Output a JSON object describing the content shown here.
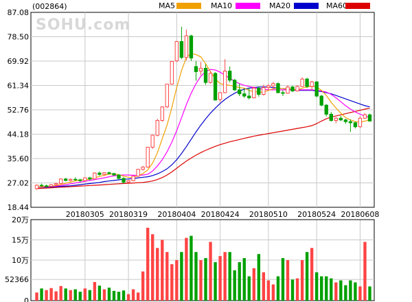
{
  "header": {
    "stock_code": "(002864)",
    "watermark": "SOHU.com",
    "legend": [
      {
        "name": "MA5",
        "color": "#f0a000"
      },
      {
        "name": "MA10",
        "color": "#ff00ff"
      },
      {
        "name": "MA20",
        "color": "#0000cc"
      },
      {
        "name": "MA60",
        "color": "#dd0000"
      }
    ]
  },
  "colors": {
    "up": "#ff4444",
    "down": "#00a000",
    "grid": "#c8c8c8",
    "border": "#000000"
  },
  "chart_data": [
    {
      "type": "candlestick",
      "title": "",
      "y_ticks": [
        "87.08",
        "78.50",
        "69.92",
        "61.34",
        "52.76",
        "44.18",
        "35.60",
        "27.02",
        "18.44"
      ],
      "ylim": [
        18.44,
        87.08
      ],
      "x_tick_labels": [
        "20180305",
        "20180319",
        "20180404",
        "20180424",
        "20180510",
        "20180524",
        "20180608"
      ],
      "x_tick_positions": [
        10,
        19,
        29,
        38,
        48,
        58,
        67
      ],
      "ohlc": [
        [
          25.0,
          26.5,
          24.6,
          26.2
        ],
        [
          26.2,
          26.8,
          25.8,
          26.0
        ],
        [
          26.0,
          26.4,
          25.5,
          25.8
        ],
        [
          25.8,
          26.6,
          25.6,
          26.4
        ],
        [
          26.4,
          27.0,
          26.0,
          26.8
        ],
        [
          26.8,
          28.6,
          26.6,
          28.4
        ],
        [
          28.4,
          28.8,
          27.6,
          27.9
        ],
        [
          27.9,
          28.6,
          27.5,
          28.3
        ],
        [
          28.3,
          29.0,
          27.8,
          28.1
        ],
        [
          28.1,
          28.5,
          27.4,
          27.8
        ],
        [
          27.8,
          29.0,
          27.6,
          28.8
        ],
        [
          28.8,
          29.2,
          28.0,
          28.4
        ],
        [
          28.4,
          30.8,
          28.2,
          30.5
        ],
        [
          30.5,
          31.0,
          29.6,
          30.0
        ],
        [
          30.0,
          30.8,
          29.6,
          30.6
        ],
        [
          30.6,
          31.0,
          30.0,
          30.3
        ],
        [
          30.3,
          30.6,
          29.6,
          29.8
        ],
        [
          29.8,
          30.2,
          28.4,
          28.6
        ],
        [
          28.6,
          29.0,
          26.8,
          27.3
        ],
        [
          27.3,
          28.0,
          27.0,
          27.8
        ],
        [
          27.8,
          29.6,
          27.6,
          29.4
        ],
        [
          29.4,
          32.0,
          29.2,
          31.8
        ],
        [
          31.8,
          33.0,
          31.4,
          32.6
        ],
        [
          32.6,
          39.6,
          32.4,
          39.6
        ],
        [
          39.6,
          44.0,
          39.0,
          43.8
        ],
        [
          43.8,
          49.6,
          43.4,
          49.0
        ],
        [
          49.0,
          54.0,
          48.6,
          53.8
        ],
        [
          53.8,
          61.8,
          53.4,
          61.8
        ],
        [
          61.8,
          70.0,
          61.6,
          69.8
        ],
        [
          70.0,
          77.0,
          69.6,
          76.8
        ],
        [
          76.8,
          82.0,
          70.6,
          71.2
        ],
        [
          71.2,
          81.0,
          70.2,
          78.8
        ],
        [
          78.8,
          79.2,
          70.0,
          71.0
        ],
        [
          68.0,
          70.0,
          63.0,
          66.2
        ],
        [
          66.4,
          69.6,
          65.0,
          67.4
        ],
        [
          67.4,
          68.8,
          61.6,
          62.4
        ],
        [
          62.4,
          66.4,
          62.0,
          65.6
        ],
        [
          65.6,
          66.0,
          56.0,
          56.2
        ],
        [
          56.4,
          59.0,
          55.6,
          58.8
        ],
        [
          58.8,
          70.6,
          58.6,
          66.4
        ],
        [
          66.4,
          68.0,
          62.4,
          63.2
        ],
        [
          63.2,
          63.6,
          59.4,
          59.8
        ],
        [
          59.8,
          62.0,
          57.6,
          58.4
        ],
        [
          58.4,
          60.4,
          57.0,
          57.6
        ],
        [
          57.6,
          60.6,
          56.4,
          57.0
        ],
        [
          57.0,
          61.0,
          56.8,
          60.4
        ],
        [
          60.4,
          60.8,
          57.4,
          58.2
        ],
        [
          58.2,
          61.6,
          57.8,
          60.6
        ],
        [
          60.6,
          61.8,
          59.6,
          61.2
        ],
        [
          61.2,
          62.6,
          60.2,
          62.0
        ],
        [
          62.0,
          62.4,
          58.6,
          58.8
        ],
        [
          58.8,
          59.6,
          57.6,
          58.6
        ],
        [
          58.6,
          61.4,
          58.4,
          60.8
        ],
        [
          60.8,
          61.2,
          59.0,
          59.4
        ],
        [
          59.4,
          61.4,
          59.2,
          61.0
        ],
        [
          61.0,
          64.2,
          60.8,
          63.6
        ],
        [
          63.6,
          64.0,
          60.4,
          61.0
        ],
        [
          61.0,
          63.0,
          59.6,
          62.6
        ],
        [
          62.6,
          62.8,
          57.2,
          57.6
        ],
        [
          57.6,
          58.0,
          54.0,
          54.4
        ],
        [
          54.4,
          54.8,
          50.4,
          51.2
        ],
        [
          51.2,
          52.0,
          48.6,
          49.0
        ],
        [
          49.0,
          50.2,
          48.0,
          49.8
        ],
        [
          49.8,
          50.6,
          48.8,
          49.2
        ],
        [
          49.2,
          49.6,
          47.8,
          48.6
        ],
        [
          48.6,
          49.4,
          45.0,
          48.2
        ],
        [
          48.2,
          48.6,
          46.2,
          46.8
        ],
        [
          46.8,
          50.4,
          46.4,
          49.8
        ],
        [
          49.8,
          51.6,
          49.6,
          51.0
        ],
        [
          51.0,
          51.4,
          48.6,
          48.8
        ]
      ],
      "ma": {
        "MA5": [
          25.6,
          25.7,
          25.8,
          25.9,
          26.1,
          26.5,
          26.9,
          27.3,
          27.7,
          28.0,
          28.2,
          28.3,
          28.8,
          29.3,
          29.7,
          30.1,
          30.2,
          29.9,
          29.4,
          29.0,
          28.9,
          29.5,
          30.3,
          31.6,
          34.0,
          37.6,
          42.6,
          47.4,
          53.6,
          60.6,
          66.6,
          71.2,
          72.6,
          72.2,
          71.4,
          69.0,
          66.2,
          63.6,
          62.0,
          61.6,
          61.4,
          61.0,
          60.6,
          60.4,
          59.6,
          59.2,
          59.0,
          59.0,
          59.6,
          60.2,
          60.4,
          60.2,
          60.2,
          60.0,
          59.8,
          60.4,
          60.8,
          61.0,
          60.8,
          59.6,
          57.8,
          55.4,
          53.4,
          51.6,
          50.0,
          49.2,
          48.6,
          48.4,
          48.8,
          49.2
        ],
        "MA10": [
          25.5,
          25.6,
          25.7,
          25.8,
          25.9,
          26.1,
          26.4,
          26.7,
          27.0,
          27.3,
          27.6,
          27.9,
          28.2,
          28.5,
          28.8,
          29.2,
          29.5,
          29.7,
          29.8,
          29.8,
          29.7,
          29.7,
          29.8,
          30.1,
          31.2,
          33.0,
          35.2,
          38.0,
          41.4,
          45.4,
          50.0,
          54.6,
          58.6,
          62.0,
          64.6,
          66.2,
          67.0,
          66.8,
          66.0,
          65.0,
          63.8,
          62.8,
          62.0,
          61.4,
          61.0,
          60.6,
          60.2,
          60.0,
          59.8,
          59.8,
          59.8,
          59.8,
          59.8,
          59.8,
          59.8,
          59.8,
          59.8,
          59.8,
          59.6,
          59.4,
          59.0,
          58.2,
          57.0,
          55.6,
          54.2,
          53.0,
          52.0,
          51.2,
          50.6,
          50.0
        ],
        "MA20": [
          25.4,
          25.5,
          25.5,
          25.6,
          25.7,
          25.8,
          25.9,
          26.0,
          26.2,
          26.4,
          26.6,
          26.8,
          27.0,
          27.2,
          27.5,
          27.7,
          27.9,
          28.1,
          28.3,
          28.4,
          28.6,
          28.8,
          29.0,
          29.2,
          29.6,
          30.2,
          31.0,
          32.0,
          33.4,
          35.2,
          37.4,
          39.8,
          42.4,
          45.0,
          47.4,
          49.6,
          51.6,
          53.4,
          55.0,
          56.4,
          57.6,
          58.6,
          59.4,
          60.0,
          60.4,
          60.6,
          60.8,
          60.8,
          60.8,
          60.6,
          60.4,
          60.2,
          60.0,
          59.8,
          59.6,
          59.6,
          59.6,
          59.6,
          59.4,
          59.2,
          58.8,
          58.4,
          57.8,
          57.2,
          56.6,
          56.0,
          55.4,
          54.8,
          54.2,
          53.8
        ],
        "MA60": [
          25.0,
          25.1,
          25.2,
          25.3,
          25.4,
          25.5,
          25.6,
          25.7,
          25.8,
          25.9,
          26.0,
          26.1,
          26.2,
          26.3,
          26.4,
          26.5,
          26.6,
          26.7,
          26.8,
          26.9,
          27.0,
          27.1,
          27.2,
          27.4,
          27.7,
          28.2,
          28.9,
          29.8,
          30.9,
          32.2,
          33.5,
          34.7,
          35.8,
          36.8,
          37.7,
          38.5,
          39.2,
          39.9,
          40.5,
          41.0,
          41.5,
          41.9,
          42.3,
          42.7,
          43.1,
          43.5,
          43.8,
          44.1,
          44.4,
          44.7,
          45.0,
          45.3,
          45.6,
          45.9,
          46.2,
          46.5,
          46.8,
          47.2,
          47.9,
          48.8,
          49.6,
          50.2,
          50.6,
          51.0,
          51.4,
          51.8,
          52.2,
          52.6,
          53.0,
          53.4
        ]
      }
    },
    {
      "type": "bar",
      "title": "",
      "y_ticks": [
        "20万",
        "15万",
        "10万",
        "52366",
        "0"
      ],
      "ylim": [
        0,
        200000
      ],
      "values": [
        20000,
        30000,
        26000,
        31000,
        23000,
        36000,
        30000,
        26000,
        28000,
        22000,
        30000,
        26000,
        46000,
        37000,
        28000,
        32000,
        24000,
        22000,
        25000,
        16000,
        28000,
        20000,
        72000,
        180000,
        164000,
        130000,
        150000,
        120000,
        90000,
        100000,
        120000,
        155000,
        160000,
        120000,
        100000,
        105000,
        145000,
        95000,
        110000,
        120000,
        120000,
        75000,
        95000,
        105000,
        60000,
        80000,
        115000,
        70000,
        50000,
        40000,
        60000,
        105000,
        100000,
        52000,
        55000,
        100000,
        120000,
        130000,
        70000,
        60000,
        60000,
        55000,
        45000,
        50000,
        38000,
        50000,
        45000,
        35000,
        145000,
        35000
      ],
      "up": [
        1,
        0,
        1,
        1,
        1,
        1,
        0,
        1,
        0,
        0,
        1,
        0,
        1,
        0,
        1,
        0,
        0,
        0,
        0,
        1,
        1,
        1,
        1,
        1,
        1,
        1,
        1,
        1,
        1,
        1,
        0,
        1,
        0,
        0,
        1,
        0,
        1,
        0,
        1,
        1,
        0,
        0,
        0,
        0,
        0,
        1,
        0,
        1,
        1,
        1,
        0,
        0,
        1,
        0,
        1,
        1,
        0,
        1,
        0,
        0,
        0,
        0,
        1,
        0,
        0,
        0,
        0,
        1,
        1,
        0
      ]
    }
  ]
}
